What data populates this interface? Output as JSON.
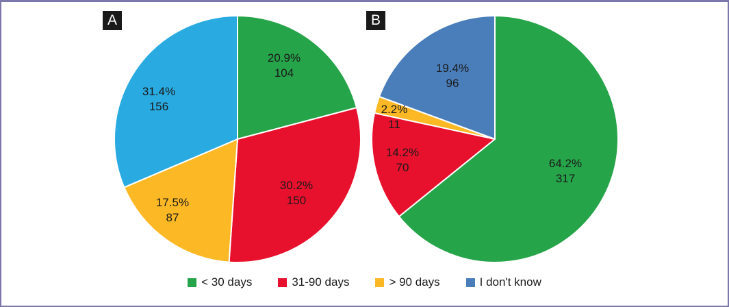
{
  "chart_data": [
    {
      "type": "pie",
      "panel": "A",
      "categories": [
        "< 30 days",
        "31-90 days",
        "> 90 days",
        "I don't know"
      ],
      "percents": [
        20.9,
        30.2,
        17.5,
        31.4
      ],
      "counts": [
        104,
        150,
        87,
        156
      ],
      "colors": [
        "#26A449",
        "#E8112D",
        "#FDB826",
        "#29ABE2"
      ],
      "start_angle_deg": 0,
      "direction": "clockwise",
      "slice_label_lines": [
        "percent",
        "count"
      ],
      "label_xy_svg": [
        [
          253,
          77
        ],
        [
          271,
          263
        ],
        [
          90,
          288
        ],
        [
          70,
          126
        ]
      ]
    },
    {
      "type": "pie",
      "panel": "B",
      "categories": [
        "< 30 days",
        "31-90 days",
        "> 90 days",
        "I don't know"
      ],
      "percents": [
        64.2,
        14.2,
        2.2,
        19.4
      ],
      "counts": [
        317,
        70,
        11,
        96
      ],
      "colors": [
        "#26A449",
        "#E8112D",
        "#FDB826",
        "#4A7EBB"
      ],
      "start_angle_deg": 0,
      "direction": "clockwise",
      "slice_label_lines": [
        "percent",
        "count"
      ],
      "label_xy_svg": [
        [
          288,
          231
        ],
        [
          50,
          215
        ],
        [
          38,
          152
        ],
        [
          123,
          92
        ]
      ]
    }
  ],
  "legend": {
    "items": [
      {
        "label": "< 30 days",
        "color": "#26A449"
      },
      {
        "label": "31-90 days",
        "color": "#E8112D"
      },
      {
        "label": "> 90 days",
        "color": "#FDB826"
      },
      {
        "label": "I don't know",
        "color": "#4A7EBB"
      }
    ]
  },
  "colors": {
    "frame_border": "#7C77AA",
    "panel_label_bg": "#1A1A1A",
    "panel_label_text": "#FFFFFF",
    "slice_label_text": "#1A1A1A",
    "slice_gap_stroke": "#FFFFFF",
    "background": "#FFFFFF"
  }
}
